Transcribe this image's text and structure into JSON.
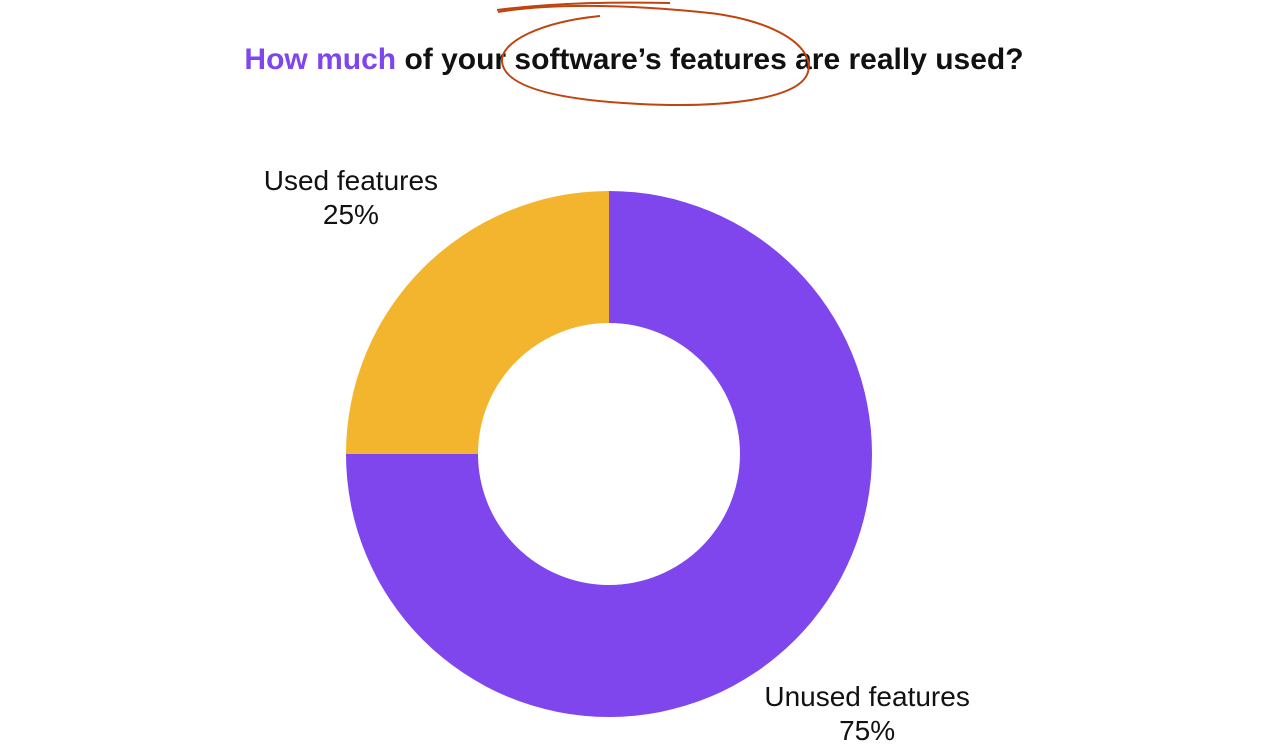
{
  "chart_data": {
    "type": "donut",
    "title": [
      {
        "text": "How much",
        "color": "#7f46ed"
      },
      {
        "text": "of your software’s features are really used?",
        "color": "#111111"
      }
    ],
    "categories": [
      "Unused features",
      "Used features"
    ],
    "values": [
      75,
      25
    ],
    "value_labels": [
      "75%",
      "25%"
    ],
    "colors": [
      "#7f46ed",
      "#f4b52e"
    ]
  }
}
